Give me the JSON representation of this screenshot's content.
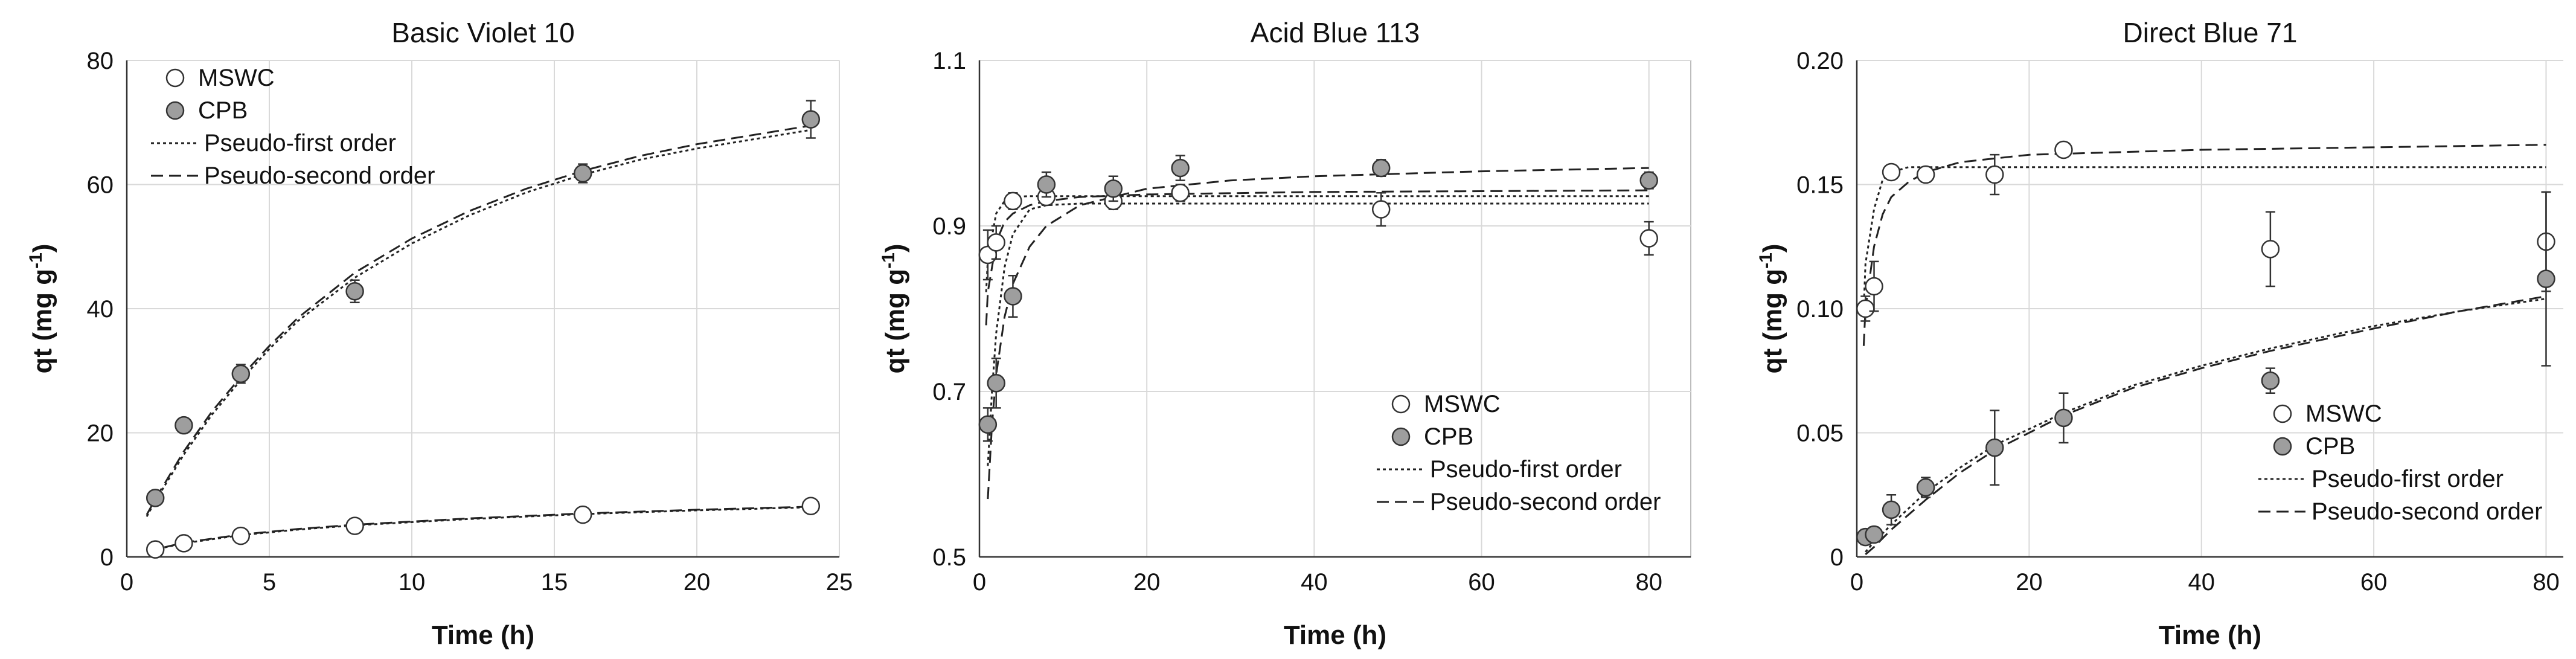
{
  "legend": {
    "mswc": "MSWC",
    "cpb": "CPB",
    "first_order": "Pseudo-first order",
    "second_order": "Pseudo-second order"
  },
  "colors": {
    "mswc_fill": "#ffffff",
    "cpb_fill": "#9e9e9e",
    "marker_stroke": "#333333",
    "line": "#222222"
  },
  "chart_data": [
    {
      "type": "scatter",
      "title": "Basic Violet 10",
      "xlabel": "Time (h)",
      "ylabel": "qt (mg g-1)",
      "xlim": [
        0,
        25
      ],
      "ylim": [
        0,
        80
      ],
      "xticks": [
        0,
        5,
        10,
        15,
        20,
        25
      ],
      "yticks": [
        0,
        20,
        40,
        60,
        80
      ],
      "ytick_labels": [
        "0",
        "20",
        "40",
        "60",
        "80"
      ],
      "grid": true,
      "legend_position": "top-left",
      "series": [
        {
          "name": "MSWC",
          "marker": "open-circle",
          "x": [
            1,
            2,
            4,
            8,
            16,
            24
          ],
          "y": [
            1.2,
            2.2,
            3.4,
            5.0,
            6.8,
            8.2
          ],
          "err": [
            0.3,
            0.3,
            0.4,
            0.4,
            0.5,
            0.5
          ]
        },
        {
          "name": "CPB",
          "marker": "filled-circle",
          "x": [
            1,
            2,
            4,
            8,
            16,
            24
          ],
          "y": [
            9.5,
            21.2,
            29.5,
            42.8,
            61.8,
            70.5
          ],
          "err": [
            0.8,
            0.8,
            1.5,
            1.8,
            1.5,
            3.0
          ]
        }
      ],
      "fits": [
        {
          "name": "Pseudo-first order",
          "x": [
            0.7,
            1,
            2,
            3,
            4,
            5,
            6,
            8,
            10,
            12,
            14,
            16,
            18,
            20,
            22,
            24
          ],
          "y": [
            6.5,
            9,
            16.5,
            23,
            28.5,
            33.5,
            38,
            45,
            50.5,
            55,
            58.7,
            61.6,
            64,
            65.8,
            67.3,
            68.8
          ]
        },
        {
          "name": "Pseudo-second order",
          "x": [
            0.7,
            1,
            2,
            3,
            4,
            5,
            6,
            8,
            10,
            12,
            14,
            16,
            18,
            20,
            22,
            24
          ],
          "y": [
            6.8,
            9.3,
            17,
            23.5,
            29,
            34,
            38.5,
            45.8,
            51.3,
            55.7,
            59.3,
            62.2,
            64.6,
            66.5,
            68,
            69.5
          ]
        },
        {
          "name": "Pseudo-first order",
          "x": [
            0.7,
            1,
            2,
            4,
            6,
            8,
            12,
            16,
            20,
            24
          ],
          "y": [
            0.9,
            1.2,
            2.2,
            3.5,
            4.4,
            5.1,
            6.1,
            6.9,
            7.5,
            8.0
          ]
        },
        {
          "name": "Pseudo-second order",
          "x": [
            0.7,
            1,
            2,
            4,
            6,
            8,
            12,
            16,
            20,
            24
          ],
          "y": [
            0.9,
            1.2,
            2.3,
            3.6,
            4.5,
            5.2,
            6.2,
            7.0,
            7.6,
            8.1
          ]
        }
      ]
    },
    {
      "type": "scatter",
      "title": "Acid Blue 113",
      "xlabel": "Time (h)",
      "ylabel": "qt (mg g-1)",
      "xlim": [
        0,
        85
      ],
      "ylim": [
        0.5,
        1.1
      ],
      "xticks": [
        0,
        20,
        40,
        60,
        80
      ],
      "yticks": [
        0.5,
        0.7,
        0.9,
        1.1
      ],
      "ytick_labels": [
        "0.5",
        "0.7",
        "0.9",
        "1.1"
      ],
      "grid": true,
      "legend_position": "bottom-right",
      "series": [
        {
          "name": "MSWC",
          "marker": "open-circle",
          "x": [
            1,
            2,
            4,
            8,
            16,
            24,
            48,
            80
          ],
          "y": [
            0.865,
            0.88,
            0.93,
            0.935,
            0.93,
            0.94,
            0.92,
            0.885
          ],
          "err": [
            0.03,
            0.02,
            0.01,
            0.01,
            0.01,
            0.01,
            0.02,
            0.02
          ]
        },
        {
          "name": "CPB",
          "marker": "filled-circle",
          "x": [
            1,
            2,
            4,
            8,
            16,
            24,
            48,
            80
          ],
          "y": [
            0.66,
            0.71,
            0.815,
            0.95,
            0.945,
            0.97,
            0.97,
            0.955
          ],
          "err": [
            0.02,
            0.03,
            0.025,
            0.015,
            0.015,
            0.015,
            0.01,
            0.01
          ]
        }
      ],
      "fits": [
        {
          "name": "Pseudo-first order",
          "x": [
            0.8,
            1,
            2,
            3,
            4,
            6,
            8,
            12,
            20,
            40,
            60,
            80
          ],
          "y": [
            0.82,
            0.86,
            0.915,
            0.93,
            0.935,
            0.936,
            0.936,
            0.936,
            0.936,
            0.936,
            0.936,
            0.936
          ]
        },
        {
          "name": "Pseudo-second order",
          "x": [
            0.8,
            1,
            2,
            3,
            4,
            6,
            8,
            12,
            20,
            40,
            60,
            80
          ],
          "y": [
            0.78,
            0.82,
            0.88,
            0.905,
            0.915,
            0.925,
            0.93,
            0.935,
            0.938,
            0.941,
            0.942,
            0.943
          ]
        },
        {
          "name": "Pseudo-first order",
          "x": [
            1,
            1.5,
            2,
            3,
            4,
            6,
            8,
            12,
            20,
            40,
            60,
            80
          ],
          "y": [
            0.61,
            0.7,
            0.77,
            0.85,
            0.89,
            0.92,
            0.925,
            0.927,
            0.927,
            0.927,
            0.927,
            0.927
          ]
        },
        {
          "name": "Pseudo-second order",
          "x": [
            1,
            1.5,
            2,
            3,
            4,
            6,
            8,
            12,
            20,
            30,
            40,
            60,
            80
          ],
          "y": [
            0.57,
            0.66,
            0.72,
            0.79,
            0.83,
            0.875,
            0.9,
            0.925,
            0.945,
            0.955,
            0.96,
            0.966,
            0.97
          ]
        }
      ]
    },
    {
      "type": "scatter",
      "title": "Direct Blue 71",
      "xlabel": "Time (h)",
      "ylabel": "qt (mg g-1)",
      "xlim": [
        0,
        82
      ],
      "ylim": [
        0,
        0.2
      ],
      "xticks": [
        0,
        20,
        40,
        60,
        80
      ],
      "yticks": [
        0,
        0.05,
        0.1,
        0.15,
        0.2
      ],
      "ytick_labels": [
        "0",
        "0.05",
        "0.10",
        "0.15",
        "0.20"
      ],
      "grid": true,
      "legend_position": "bottom-right",
      "series": [
        {
          "name": "MSWC",
          "marker": "open-circle",
          "x": [
            1,
            2,
            4,
            8,
            16,
            24,
            48,
            80
          ],
          "y": [
            0.1,
            0.109,
            0.155,
            0.154,
            0.154,
            0.164,
            0.124,
            0.127
          ],
          "err": [
            0.005,
            0.01,
            0.002,
            0.003,
            0.008,
            0.002,
            0.015,
            0.02
          ]
        },
        {
          "name": "CPB",
          "marker": "filled-circle",
          "x": [
            1,
            2,
            4,
            8,
            16,
            24,
            48,
            80
          ],
          "y": [
            0.008,
            0.009,
            0.019,
            0.028,
            0.044,
            0.056,
            0.071,
            0.112
          ],
          "err": [
            0.003,
            0.003,
            0.006,
            0.004,
            0.015,
            0.01,
            0.005,
            0.035
          ]
        }
      ],
      "fits": [
        {
          "name": "Pseudo-first order",
          "x": [
            0.8,
            1,
            2,
            3,
            4,
            6,
            8,
            12,
            20,
            40,
            60,
            80
          ],
          "y": [
            0.1,
            0.118,
            0.14,
            0.152,
            0.155,
            0.157,
            0.157,
            0.157,
            0.157,
            0.157,
            0.157,
            0.157
          ]
        },
        {
          "name": "Pseudo-second order",
          "x": [
            0.8,
            1,
            2,
            3,
            4,
            6,
            8,
            12,
            20,
            40,
            60,
            80
          ],
          "y": [
            0.085,
            0.1,
            0.125,
            0.138,
            0.145,
            0.151,
            0.155,
            0.159,
            0.162,
            0.164,
            0.165,
            0.166
          ]
        },
        {
          "name": "Pseudo-first order",
          "x": [
            1,
            2,
            4,
            8,
            12,
            16,
            24,
            32,
            40,
            48,
            60,
            70,
            80
          ],
          "y": [
            0.002,
            0.006,
            0.013,
            0.026,
            0.036,
            0.045,
            0.058,
            0.069,
            0.077,
            0.084,
            0.093,
            0.099,
            0.104
          ]
        },
        {
          "name": "Pseudo-second order",
          "x": [
            1,
            2,
            4,
            8,
            12,
            16,
            24,
            32,
            40,
            48,
            60,
            70,
            80
          ],
          "y": [
            0.001,
            0.004,
            0.011,
            0.023,
            0.034,
            0.043,
            0.057,
            0.068,
            0.076,
            0.083,
            0.092,
            0.099,
            0.105
          ]
        }
      ]
    }
  ]
}
